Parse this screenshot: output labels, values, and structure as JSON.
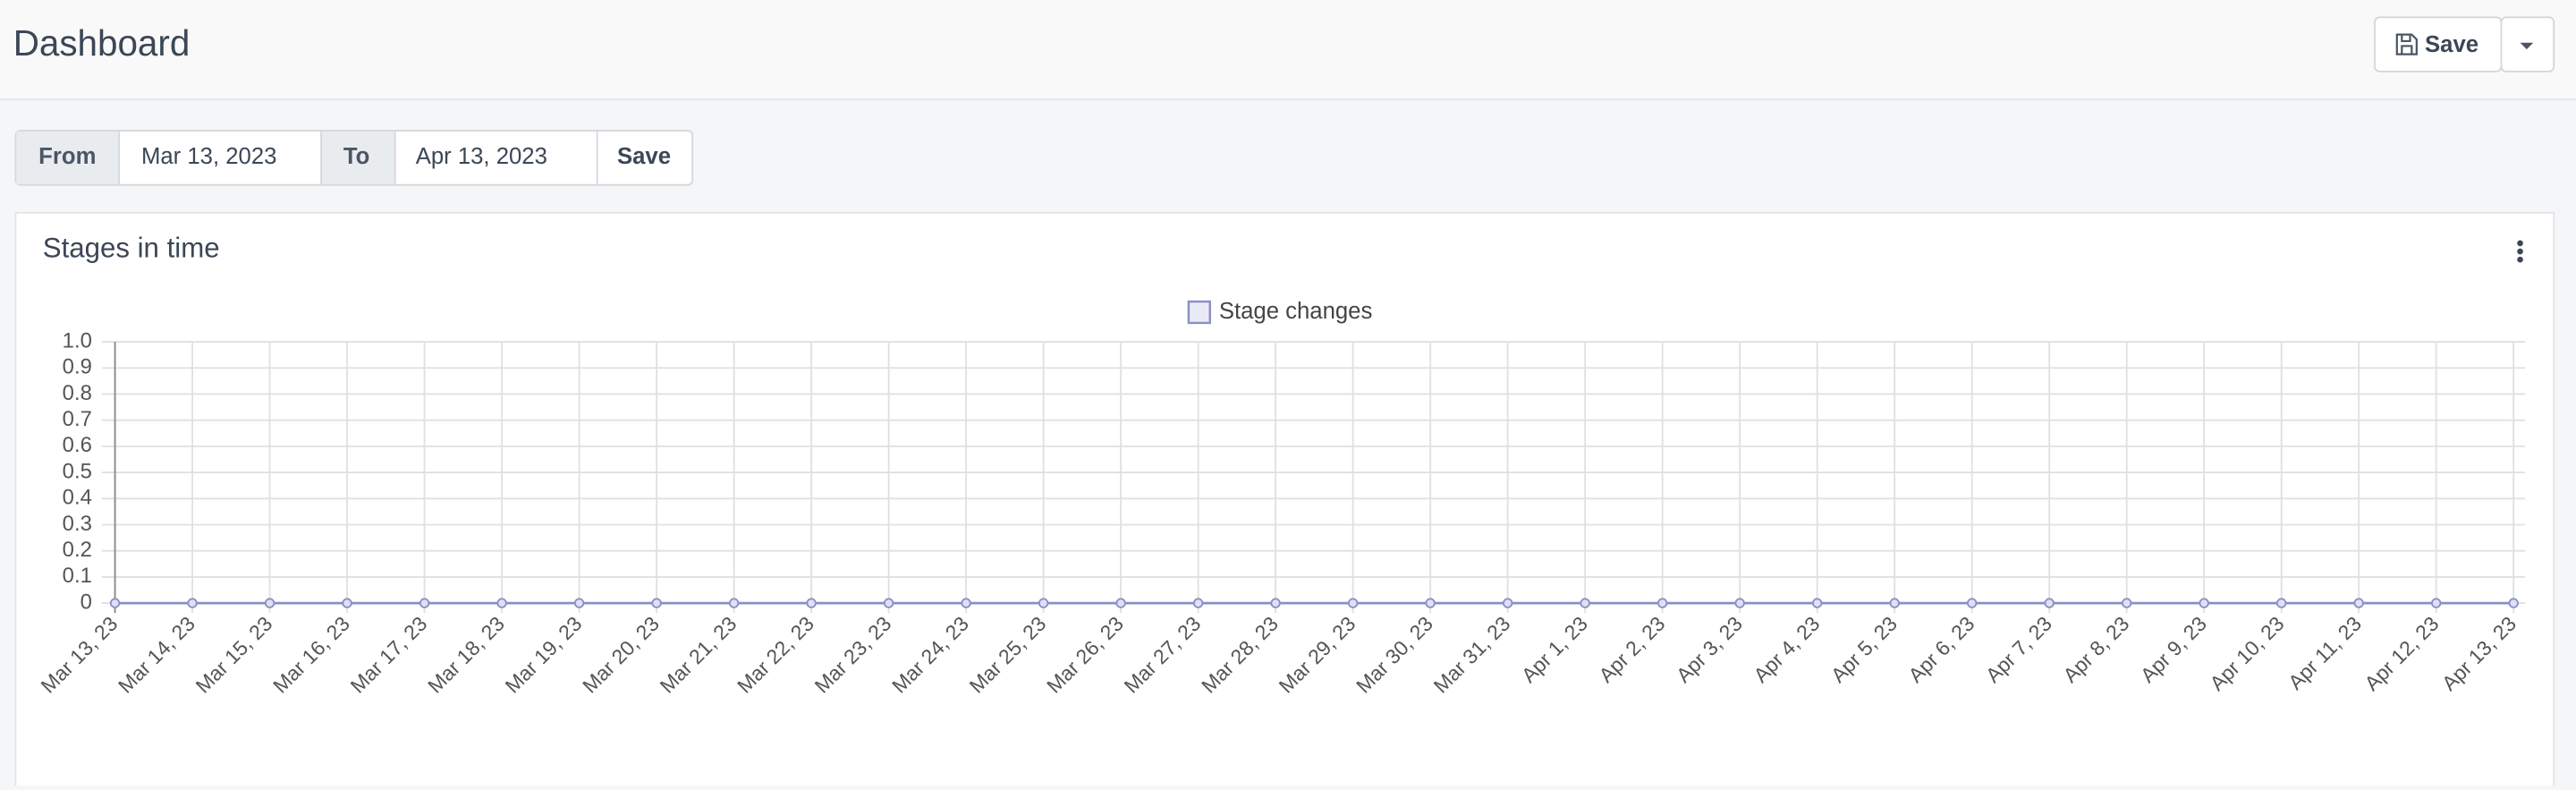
{
  "header": {
    "title": "Dashboard",
    "save_button": "Save"
  },
  "date_filter": {
    "from_label": "From",
    "from_value": "Mar 13, 2023",
    "to_label": "To",
    "to_value": "Apr 13, 2023",
    "save_button": "Save"
  },
  "chart_data": {
    "type": "line",
    "title": "Stages in time",
    "categories": [
      "Mar 13, 23",
      "Mar 14, 23",
      "Mar 15, 23",
      "Mar 16, 23",
      "Mar 17, 23",
      "Mar 18, 23",
      "Mar 19, 23",
      "Mar 20, 23",
      "Mar 21, 23",
      "Mar 22, 23",
      "Mar 23, 23",
      "Mar 24, 23",
      "Mar 25, 23",
      "Mar 26, 23",
      "Mar 27, 23",
      "Mar 28, 23",
      "Mar 29, 23",
      "Mar 30, 23",
      "Mar 31, 23",
      "Apr 1, 23",
      "Apr 2, 23",
      "Apr 3, 23",
      "Apr 4, 23",
      "Apr 5, 23",
      "Apr 6, 23",
      "Apr 7, 23",
      "Apr 8, 23",
      "Apr 9, 23",
      "Apr 10, 23",
      "Apr 11, 23",
      "Apr 12, 23",
      "Apr 13, 23"
    ],
    "series": [
      {
        "name": "Stage changes",
        "color": "#8a8fc4",
        "values": [
          0,
          0,
          0,
          0,
          0,
          0,
          0,
          0,
          0,
          0,
          0,
          0,
          0,
          0,
          0,
          0,
          0,
          0,
          0,
          0,
          0,
          0,
          0,
          0,
          0,
          0,
          0,
          0,
          0,
          0,
          0,
          0
        ]
      }
    ],
    "ylim": [
      0,
      1
    ],
    "yticks": [
      0,
      0.1,
      0.2,
      0.3,
      0.4,
      0.5,
      0.6,
      0.7,
      0.8,
      0.9,
      {
        "value": 1,
        "label": "1.0"
      }
    ],
    "grid": true,
    "legend": "top"
  }
}
